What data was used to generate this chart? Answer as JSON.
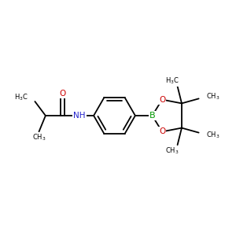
{
  "bg_color": "#ffffff",
  "bond_color": "#000000",
  "atom_colors": {
    "O": "#cc0000",
    "N": "#2222cc",
    "B": "#009900",
    "C": "#000000"
  },
  "font_size": 7.5,
  "line_width": 1.3,
  "fig_size": [
    3.0,
    3.0
  ],
  "dpi": 100
}
